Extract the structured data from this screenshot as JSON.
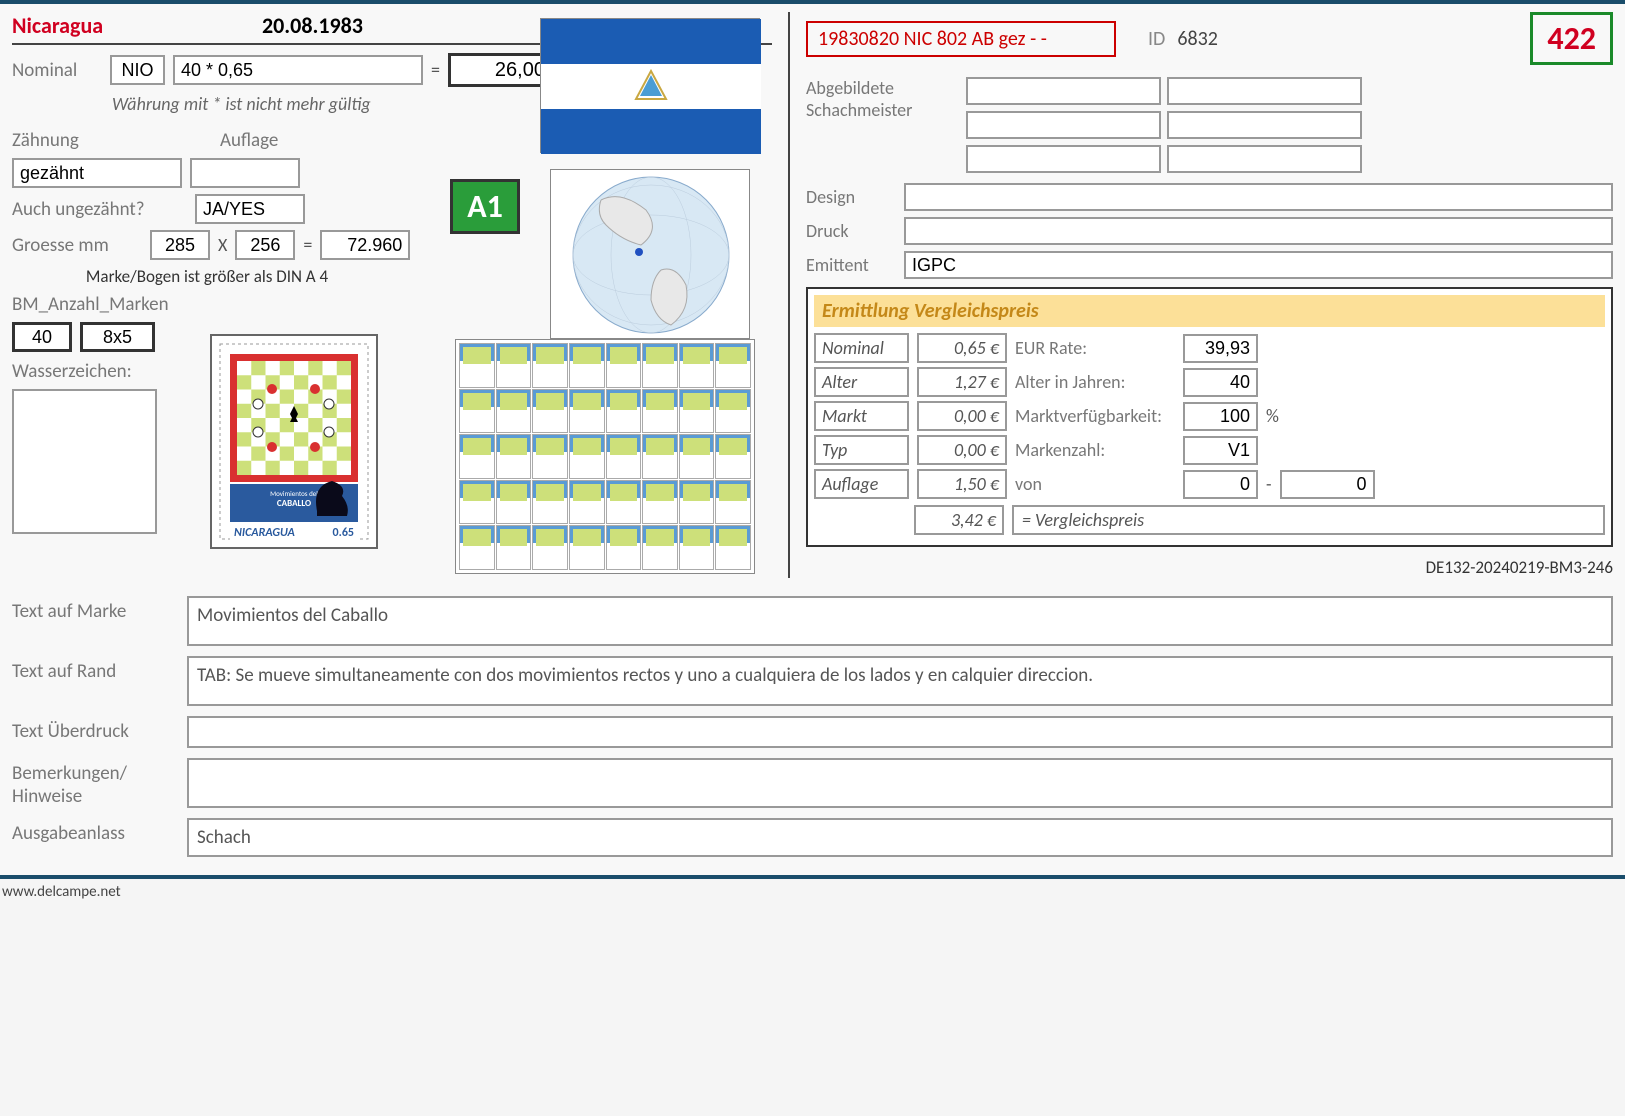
{
  "header": {
    "country": "Nicaragua",
    "date": "20.08.1983"
  },
  "nominal": {
    "label": "Nominal",
    "currency": "NIO",
    "expression": "40 * 0,65",
    "equals": "=",
    "result": "26,00",
    "note": "Währung mit * ist nicht mehr gültig"
  },
  "zaehnung": {
    "label": "Zähnung",
    "value": "gezähnt",
    "auflage_label": "Auflage",
    "auflage_value": ""
  },
  "ungezaehnt": {
    "label": "Auch ungezähnt?",
    "value": "JA/YES"
  },
  "groesse": {
    "label": "Groesse mm",
    "w": "285",
    "x": "X",
    "h": "256",
    "eq": "=",
    "area": "72.960",
    "note": "Marke/Bogen ist größer als DIN A 4"
  },
  "anzahl": {
    "label": "BM_Anzahl_Marken",
    "count": "40",
    "layout": "8x5"
  },
  "wasserzeichen": {
    "label": "Wasserzeichen:"
  },
  "badge": "A1",
  "right": {
    "catalog": "19830820 NIC 802 AB gez - -",
    "id_label": "ID",
    "id_value": "6832",
    "seq": "422",
    "meister_label": "Abgebildete Schachmeister",
    "design_label": "Design",
    "design_value": "",
    "druck_label": "Druck",
    "druck_value": "",
    "emittent_label": "Emittent",
    "emittent_value": "IGPC"
  },
  "price": {
    "title": "Ermittlung Vergleichspreis",
    "rows": [
      {
        "label": "Nominal",
        "val": "0,65 €",
        "info": "EUR Rate:",
        "extra": "39,93"
      },
      {
        "label": "Alter",
        "val": "1,27 €",
        "info": "Alter in Jahren:",
        "extra": "40"
      },
      {
        "label": "Markt",
        "val": "0,00 €",
        "info": "Marktverfügbarkeit:",
        "extra": "100",
        "suffix": "%"
      },
      {
        "label": "Typ",
        "val": "0,00 €",
        "info": "Markenzahl:",
        "extra": "V1"
      },
      {
        "label": "Auflage",
        "val": "1,50 €",
        "info": "von",
        "extra": "0",
        "extra2": "0",
        "dash": "-"
      }
    ],
    "total": "3,42 €",
    "total_label": "= Vergleichspreis",
    "version": "DE132-20240219-BM3-246"
  },
  "texts": {
    "marke_label": "Text auf Marke",
    "marke_value": "Movimientos del Caballo",
    "rand_label": "Text auf Rand",
    "rand_value": "TAB: Se mueve simultaneamente con dos movimientos rectos y uno a cualquiera de los lados y en calquier direccion.",
    "ueberdruck_label": "Text Überdruck",
    "ueberdruck_value": "",
    "bemerkungen_label": "Bemerkungen/ Hinweise",
    "bemerkungen_value": "",
    "anlass_label": "Ausgabeanlass",
    "anlass_value": "Schach"
  },
  "footer": "www.delcampe.net",
  "flag": {
    "stripe_blue": "#1b5cb3",
    "stripe_white": "#ffffff"
  },
  "stamp": {
    "country": "NICARAGUA",
    "value": "0.65",
    "title1": "Movimientos del",
    "title2": "CABALLO"
  }
}
